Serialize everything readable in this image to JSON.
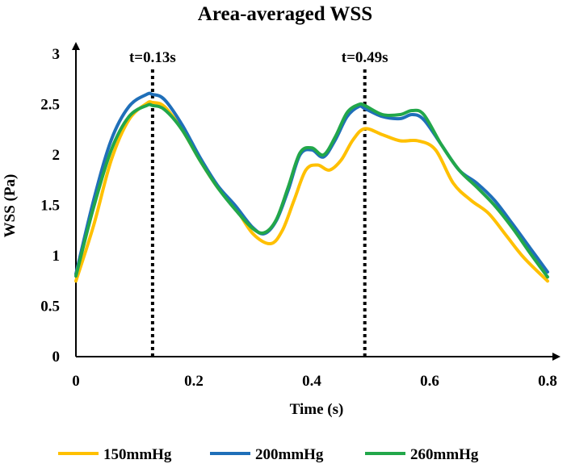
{
  "chart_data": {
    "type": "line",
    "title": "Area-averaged WSS",
    "xlabel": "Time (s)",
    "ylabel": "WSS (Pa)",
    "xlim": [
      0,
      0.8
    ],
    "ylim": [
      0,
      3
    ],
    "xticks": [
      0,
      0.2,
      0.4,
      0.6,
      0.8
    ],
    "xtick_labels": [
      "0",
      "0.2",
      "0.4",
      "0.6",
      "0.8"
    ],
    "yticks": [
      0,
      0.5,
      1,
      1.5,
      2,
      2.5,
      3
    ],
    "ytick_labels": [
      "0",
      "0.5",
      "1",
      "1.5",
      "2",
      "2.5",
      "3"
    ],
    "grid": false,
    "legend_position": "bottom",
    "annotations": [
      {
        "x": 0.13,
        "label": "t=0.13s"
      },
      {
        "x": 0.49,
        "label": "t=0.49s"
      }
    ],
    "series": [
      {
        "name": "150mmHg",
        "color": "#FFC000",
        "x": [
          0,
          0.03,
          0.06,
          0.09,
          0.12,
          0.13,
          0.15,
          0.18,
          0.21,
          0.24,
          0.27,
          0.3,
          0.33,
          0.35,
          0.37,
          0.39,
          0.41,
          0.43,
          0.45,
          0.47,
          0.49,
          0.52,
          0.55,
          0.58,
          0.61,
          0.64,
          0.67,
          0.7,
          0.73,
          0.76,
          0.8
        ],
        "y": [
          0.75,
          1.3,
          1.95,
          2.35,
          2.51,
          2.52,
          2.48,
          2.25,
          1.95,
          1.68,
          1.48,
          1.22,
          1.12,
          1.25,
          1.55,
          1.85,
          1.9,
          1.85,
          1.95,
          2.15,
          2.26,
          2.2,
          2.14,
          2.14,
          2.05,
          1.72,
          1.55,
          1.42,
          1.2,
          0.98,
          0.75
        ]
      },
      {
        "name": "200mmHg",
        "color": "#1F6FB9",
        "x": [
          0,
          0.03,
          0.06,
          0.09,
          0.12,
          0.13,
          0.15,
          0.18,
          0.21,
          0.24,
          0.27,
          0.3,
          0.32,
          0.34,
          0.36,
          0.38,
          0.4,
          0.42,
          0.44,
          0.46,
          0.48,
          0.49,
          0.52,
          0.55,
          0.57,
          0.59,
          0.62,
          0.65,
          0.68,
          0.71,
          0.74,
          0.77,
          0.8
        ],
        "y": [
          0.82,
          1.55,
          2.15,
          2.48,
          2.6,
          2.6,
          2.55,
          2.3,
          1.98,
          1.7,
          1.5,
          1.28,
          1.22,
          1.35,
          1.65,
          2.0,
          2.05,
          1.98,
          2.15,
          2.38,
          2.48,
          2.46,
          2.38,
          2.36,
          2.4,
          2.35,
          2.1,
          1.85,
          1.72,
          1.55,
          1.32,
          1.08,
          0.84
        ]
      },
      {
        "name": "260mmHg",
        "color": "#22A74A",
        "x": [
          0,
          0.03,
          0.06,
          0.09,
          0.12,
          0.13,
          0.15,
          0.18,
          0.21,
          0.24,
          0.27,
          0.3,
          0.32,
          0.34,
          0.36,
          0.38,
          0.4,
          0.42,
          0.44,
          0.46,
          0.48,
          0.49,
          0.52,
          0.55,
          0.57,
          0.59,
          0.62,
          0.65,
          0.68,
          0.71,
          0.74,
          0.77,
          0.8
        ],
        "y": [
          0.8,
          1.48,
          2.05,
          2.38,
          2.49,
          2.49,
          2.45,
          2.25,
          1.95,
          1.68,
          1.46,
          1.27,
          1.23,
          1.36,
          1.68,
          2.02,
          2.07,
          2.0,
          2.18,
          2.42,
          2.5,
          2.49,
          2.4,
          2.4,
          2.44,
          2.4,
          2.1,
          1.85,
          1.68,
          1.5,
          1.28,
          1.03,
          0.79
        ]
      }
    ]
  }
}
